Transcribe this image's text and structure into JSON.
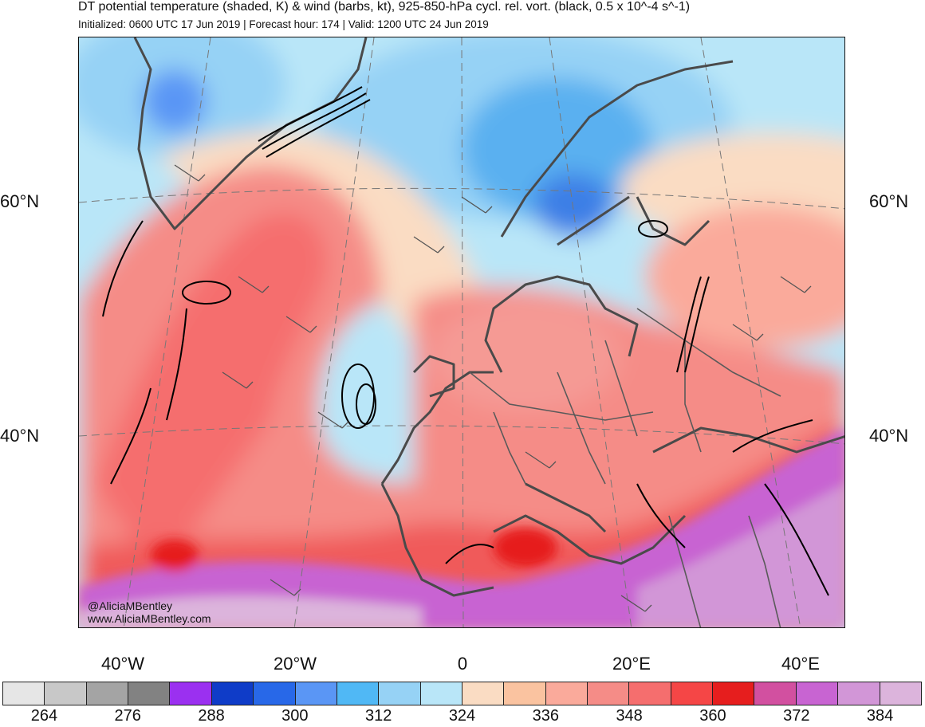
{
  "title": "DT potential temperature (shaded, K) & wind (barbs, kt), 925-850-hPa cycl. rel. vort. (black, 0.5 x 10^-4 s^-1)",
  "subtitle": "Initialized: 0600 UTC 17 Jun 2019 | Forecast hour: 174 | Valid: 1200 UTC 24 Jun 2019",
  "latitude_labels": {
    "lat60": "60°N",
    "lat40": "40°N"
  },
  "longitude_labels": {
    "w40": "40°W",
    "w20": "20°W",
    "zero": "0",
    "e20": "20°E",
    "e40": "40°E"
  },
  "colorbar": {
    "colors": [
      "#e6e6e6",
      "#c8c8c8",
      "#a4a4a4",
      "#828282",
      "#9b30f0",
      "#0f3cc8",
      "#2868e8",
      "#5a96f5",
      "#50b8f5",
      "#96d2f5",
      "#b9e6f8",
      "#fadcc3",
      "#fac3a0",
      "#faaa9b",
      "#f58c87",
      "#f56e6e",
      "#f54646",
      "#e61e1e",
      "#d250a0",
      "#c864d2",
      "#d296d7",
      "#dcb4dc"
    ],
    "tick_labels": [
      "264",
      "276",
      "288",
      "300",
      "312",
      "324",
      "336",
      "348",
      "360",
      "372",
      "384"
    ]
  },
  "credits": {
    "handle": "@AliciaMBentley",
    "website": "www.AliciaMBentley.com"
  }
}
